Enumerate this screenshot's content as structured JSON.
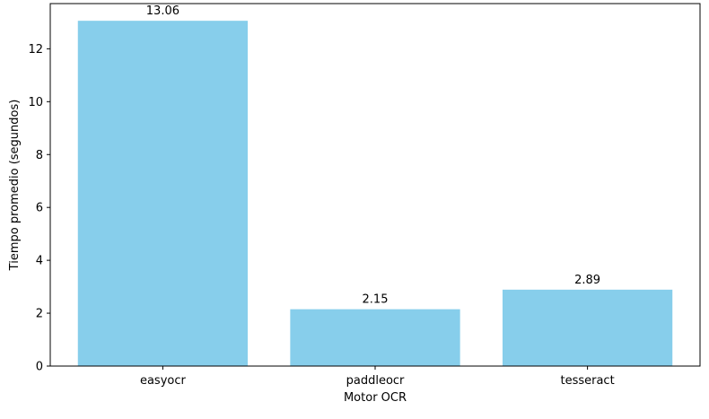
{
  "chart_data": {
    "type": "bar",
    "categories": [
      "easyocr",
      "paddleocr",
      "tesseract"
    ],
    "values": [
      13.06,
      2.15,
      2.89
    ],
    "data_labels": [
      "13.06",
      "2.15",
      "2.89"
    ],
    "xlabel": "Motor OCR",
    "ylabel": "Tiempo promedio (segundos)",
    "ylim": [
      0,
      13.71
    ],
    "yticks": [
      0,
      2,
      4,
      6,
      8,
      10,
      12
    ],
    "ytick_labels": [
      "0",
      "2",
      "4",
      "6",
      "8",
      "10",
      "12"
    ],
    "grid": false,
    "legend": "none",
    "bar_color": "#87ceeb"
  }
}
